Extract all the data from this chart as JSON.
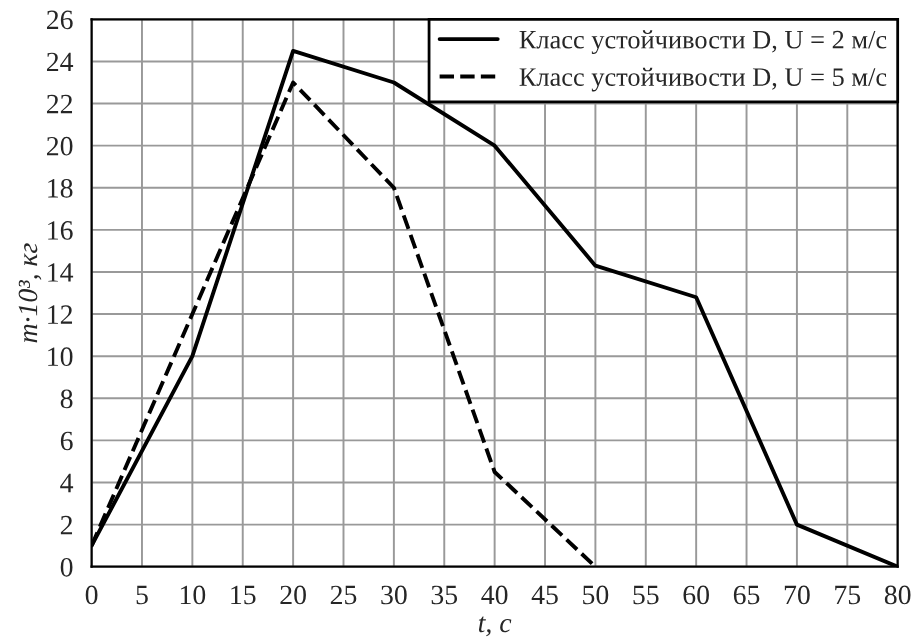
{
  "chart_data": {
    "type": "line",
    "xlabel": "t, с",
    "ylabel": "m·10³, кг",
    "xlim": [
      0,
      80
    ],
    "ylim": [
      0,
      26
    ],
    "xticks": [
      0,
      5,
      10,
      15,
      20,
      25,
      30,
      35,
      40,
      45,
      50,
      55,
      60,
      65,
      70,
      75,
      80
    ],
    "yticks": [
      0,
      2,
      4,
      6,
      8,
      10,
      12,
      14,
      16,
      18,
      20,
      22,
      24,
      26
    ],
    "grid": true,
    "legend": "top right",
    "marker": "none",
    "series": [
      {
        "name": "Класс устойчивости D, U = 2 м/с",
        "color": "#000000",
        "line_style": "solid",
        "x": [
          0,
          10,
          20,
          30,
          40,
          50,
          60,
          70,
          80
        ],
        "values": [
          1,
          10,
          24.5,
          23,
          20,
          14.3,
          12.8,
          2,
          0
        ]
      },
      {
        "name": "Класс устойчивости D, U = 5 м/с",
        "color": "#000000",
        "line_style": "dashed",
        "x": [
          0,
          10,
          20,
          30,
          40,
          50
        ],
        "values": [
          1,
          12,
          23,
          18,
          4.5,
          0
        ]
      }
    ]
  }
}
